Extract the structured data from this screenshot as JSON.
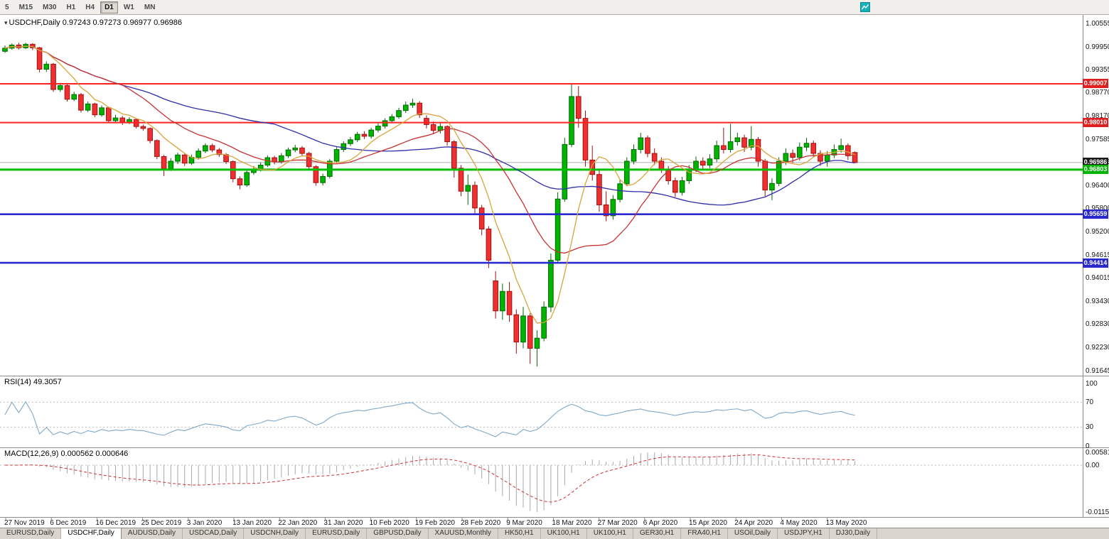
{
  "toolbar": {
    "timeframes": [
      {
        "label": "5",
        "active": false
      },
      {
        "label": "M15",
        "active": false
      },
      {
        "label": "M30",
        "active": false
      },
      {
        "label": "H1",
        "active": false
      },
      {
        "label": "H4",
        "active": false
      },
      {
        "label": "D1",
        "active": true
      },
      {
        "label": "W1",
        "active": false
      },
      {
        "label": "MN",
        "active": false
      }
    ]
  },
  "main_chart": {
    "header_symbol": "USDCHF,Daily",
    "header_ohlc": "0.97243 0.97273 0.96977 0.96986"
  },
  "rsi_panel": {
    "label": "RSI(14)",
    "value": "49.3057",
    "axis_labels": [
      "100",
      "70",
      "30",
      "0"
    ]
  },
  "macd_panel": {
    "label": "MACD(12,26,9)",
    "values": "0.000562 0.000646",
    "axis_labels": [
      "0.00581",
      "0.00",
      "-0.01151"
    ]
  },
  "price_tags": [
    {
      "value": "0.99007",
      "color": "#E02020",
      "type": "resistance-line"
    },
    {
      "value": "0.98010",
      "color": "#E02020",
      "type": "resistance-line"
    },
    {
      "value": "0.96986",
      "color": "#1A1A1A",
      "type": "current-price"
    },
    {
      "value": "0.96803",
      "color": "#00B400",
      "type": "support-line"
    },
    {
      "value": "0.95659",
      "color": "#2A2ACC",
      "type": "support-line"
    },
    {
      "value": "0.94414",
      "color": "#2A2ACC",
      "type": "support-line"
    }
  ],
  "tabs": {
    "items": [
      {
        "label": "EURUSD,Daily",
        "active": false
      },
      {
        "label": "USDCHF,Daily",
        "active": true
      },
      {
        "label": "AUDUSD,Daily",
        "active": false
      },
      {
        "label": "USDCAD,Daily",
        "active": false
      },
      {
        "label": "USDCNH,Daily",
        "active": false
      },
      {
        "label": "EURUSD,Daily",
        "active": false
      },
      {
        "label": "GBPUSD,Daily",
        "active": false
      },
      {
        "label": "XAUUSD,Monthly",
        "active": false
      },
      {
        "label": "HK50,H1",
        "active": false
      },
      {
        "label": "UK100,H1",
        "active": false
      },
      {
        "label": "UK100,H1",
        "active": false
      },
      {
        "label": "GER30,H1",
        "active": false
      },
      {
        "label": "FRA40,H1",
        "active": false
      },
      {
        "label": "USOil,Daily",
        "active": false
      },
      {
        "label": "USDJPY,H1",
        "active": false
      },
      {
        "label": "DJ30,Daily",
        "active": false
      }
    ]
  },
  "chart_data": {
    "type": "candlestick",
    "symbol": "USDCHF",
    "timeframe": "Daily",
    "last_ohlc": {
      "open": 0.97243,
      "high": 0.97273,
      "low": 0.96977,
      "close": 0.96986
    },
    "current_price": 0.96986,
    "price_range": {
      "max": 1.00555,
      "min": 0.91645
    },
    "y_ticks": [
      "1.00555",
      "0.99950",
      "0.99355",
      "0.98770",
      "0.98170",
      "0.97585",
      "0.96985",
      "0.96400",
      "0.95800",
      "0.95200",
      "0.94615",
      "0.94015",
      "0.93430",
      "0.92830",
      "0.92230",
      "0.91645"
    ],
    "x_labels": [
      "27 Nov 2019",
      "6 Dec 2019",
      "16 Dec 2019",
      "25 Dec 2019",
      "3 Jan 2020",
      "13 Jan 2020",
      "22 Jan 2020",
      "31 Jan 2020",
      "10 Feb 2020",
      "19 Feb 2020",
      "28 Feb 2020",
      "9 Mar 2020",
      "18 Mar 2020",
      "27 Mar 2020",
      "6 Apr 2020",
      "15 Apr 2020",
      "24 Apr 2020",
      "4 May 2020",
      "13 May 2020"
    ],
    "hlines": [
      {
        "price": 0.99007,
        "color": "#FF2020",
        "width": 2
      },
      {
        "price": 0.9801,
        "color": "#FF2020",
        "width": 2
      },
      {
        "price": 0.96803,
        "color": "#00BE00",
        "width": 3
      },
      {
        "price": 0.95659,
        "color": "#2A2AD0",
        "width": 2.6
      },
      {
        "price": 0.94414,
        "color": "#2A2AD0",
        "width": 2.6
      }
    ],
    "moving_averages": [
      {
        "name": "ma-slow",
        "period": 40,
        "color": "#2E2EA8"
      },
      {
        "name": "ma-medium",
        "period": 18,
        "color": "#C83232"
      },
      {
        "name": "ma-fast",
        "period": 7,
        "color": "#D9A43B"
      }
    ],
    "rsi": {
      "period": 14,
      "current": 49.3057,
      "levels": [
        70,
        30
      ]
    },
    "macd": {
      "fast": 12,
      "slow": 26,
      "signal": 9,
      "current_main": 0.000562,
      "current_signal": 0.000646
    },
    "colors": {
      "bull": "#00B400",
      "bull_border": "#006900",
      "bear": "#F03030",
      "bear_border": "#A01010",
      "rsi_line": "#7FA8C9",
      "macd_hist": "#A9A9A9",
      "macd_signal": "#D23030",
      "bid_line": "#ABABAB",
      "level_dotted": "#BBBBBB",
      "frame": "#8C8C8C"
    },
    "candles": [
      [
        0.9984,
        0.9999,
        0.998,
        0.9992
      ],
      [
        0.9992,
        1.0004,
        0.9988,
        1.0
      ],
      [
        1.0,
        1.0006,
        0.9989,
        0.9993
      ],
      [
        0.9993,
        1.0006,
        0.999,
        1.0002
      ],
      [
        1.0002,
        1.0005,
        0.9987,
        0.9993
      ],
      [
        0.9993,
        0.9995,
        0.993,
        0.9938
      ],
      [
        0.9938,
        0.9958,
        0.9931,
        0.9951
      ],
      [
        0.9951,
        0.9954,
        0.988,
        0.9886
      ],
      [
        0.9886,
        0.9903,
        0.988,
        0.9896
      ],
      [
        0.9896,
        0.99,
        0.9855,
        0.9861
      ],
      [
        0.9861,
        0.988,
        0.9856,
        0.9873
      ],
      [
        0.9873,
        0.9877,
        0.9827,
        0.9833
      ],
      [
        0.9833,
        0.9855,
        0.9828,
        0.9849
      ],
      [
        0.9849,
        0.9852,
        0.9815,
        0.9821
      ],
      [
        0.9821,
        0.9845,
        0.9816,
        0.9839
      ],
      [
        0.9839,
        0.9842,
        0.98,
        0.9806
      ],
      [
        0.9806,
        0.9821,
        0.98,
        0.9813
      ],
      [
        0.9813,
        0.9818,
        0.9795,
        0.9801
      ],
      [
        0.9801,
        0.9815,
        0.9797,
        0.9809
      ],
      [
        0.9809,
        0.9812,
        0.9786,
        0.9791
      ],
      [
        0.9791,
        0.9796,
        0.978,
        0.9786
      ],
      [
        0.9786,
        0.9789,
        0.9748,
        0.9755
      ],
      [
        0.9755,
        0.9758,
        0.9707,
        0.9714
      ],
      [
        0.9714,
        0.9718,
        0.9664,
        0.9683
      ],
      [
        0.9683,
        0.971,
        0.9677,
        0.9702
      ],
      [
        0.9702,
        0.9724,
        0.9695,
        0.9718
      ],
      [
        0.9718,
        0.9721,
        0.969,
        0.9697
      ],
      [
        0.9697,
        0.9719,
        0.9692,
        0.9712
      ],
      [
        0.9712,
        0.9735,
        0.9706,
        0.9728
      ],
      [
        0.9728,
        0.9748,
        0.9723,
        0.9742
      ],
      [
        0.9742,
        0.9747,
        0.9725,
        0.9731
      ],
      [
        0.9731,
        0.9736,
        0.9713,
        0.9719
      ],
      [
        0.9719,
        0.9723,
        0.9695,
        0.9701
      ],
      [
        0.9701,
        0.9704,
        0.9648,
        0.9657
      ],
      [
        0.9657,
        0.9663,
        0.963,
        0.9641
      ],
      [
        0.9641,
        0.9679,
        0.9636,
        0.9673
      ],
      [
        0.9673,
        0.969,
        0.9667,
        0.9682
      ],
      [
        0.9682,
        0.9699,
        0.9676,
        0.9692
      ],
      [
        0.9692,
        0.9717,
        0.9687,
        0.9711
      ],
      [
        0.9711,
        0.9716,
        0.9694,
        0.9701
      ],
      [
        0.9701,
        0.9723,
        0.9696,
        0.9716
      ],
      [
        0.9716,
        0.9737,
        0.971,
        0.9731
      ],
      [
        0.9731,
        0.9744,
        0.9725,
        0.9736
      ],
      [
        0.9736,
        0.9741,
        0.9715,
        0.9722
      ],
      [
        0.9722,
        0.9726,
        0.9681,
        0.9688
      ],
      [
        0.9688,
        0.9692,
        0.9639,
        0.9647
      ],
      [
        0.9647,
        0.967,
        0.964,
        0.9663
      ],
      [
        0.9663,
        0.9708,
        0.9658,
        0.9702
      ],
      [
        0.9702,
        0.9738,
        0.9697,
        0.9732
      ],
      [
        0.9732,
        0.9753,
        0.9726,
        0.9747
      ],
      [
        0.9747,
        0.9764,
        0.9741,
        0.9757
      ],
      [
        0.9757,
        0.9777,
        0.9751,
        0.9771
      ],
      [
        0.9771,
        0.9779,
        0.9759,
        0.9766
      ],
      [
        0.9766,
        0.9788,
        0.976,
        0.9782
      ],
      [
        0.9782,
        0.9799,
        0.9776,
        0.9792
      ],
      [
        0.9792,
        0.9812,
        0.9786,
        0.9806
      ],
      [
        0.9806,
        0.9823,
        0.98,
        0.9816
      ],
      [
        0.9816,
        0.9839,
        0.9811,
        0.9832
      ],
      [
        0.9832,
        0.9855,
        0.9826,
        0.9846
      ],
      [
        0.9846,
        0.9862,
        0.9839,
        0.9851
      ],
      [
        0.9851,
        0.9856,
        0.9813,
        0.9821
      ],
      [
        0.9812,
        0.982,
        0.9786,
        0.9796
      ],
      [
        0.9796,
        0.9804,
        0.9772,
        0.9781
      ],
      [
        0.9781,
        0.98,
        0.9773,
        0.9791
      ],
      [
        0.9791,
        0.9794,
        0.9742,
        0.9752
      ],
      [
        0.9752,
        0.9756,
        0.966,
        0.9684
      ],
      [
        0.9684,
        0.9692,
        0.9612,
        0.9625
      ],
      [
        0.9625,
        0.9668,
        0.959,
        0.964
      ],
      [
        0.964,
        0.965,
        0.9565,
        0.9582
      ],
      [
        0.9582,
        0.959,
        0.9512,
        0.9528
      ],
      [
        0.9528,
        0.9535,
        0.9428,
        0.9448
      ],
      [
        0.9395,
        0.942,
        0.9298,
        0.9318
      ],
      [
        0.9318,
        0.9388,
        0.9295,
        0.9368
      ],
      [
        0.9368,
        0.9392,
        0.929,
        0.9308
      ],
      [
        0.9308,
        0.9322,
        0.9208,
        0.9238
      ],
      [
        0.9238,
        0.9328,
        0.9222,
        0.9305
      ],
      [
        0.9305,
        0.9312,
        0.9182,
        0.9222
      ],
      [
        0.9222,
        0.9268,
        0.9175,
        0.9248
      ],
      [
        0.9248,
        0.9342,
        0.924,
        0.9328
      ],
      [
        0.9328,
        0.9465,
        0.9315,
        0.9448
      ],
      [
        0.9448,
        0.9622,
        0.944,
        0.9605
      ],
      [
        0.9605,
        0.9762,
        0.9598,
        0.9745
      ],
      [
        0.9745,
        0.9901,
        0.9738,
        0.9868
      ],
      [
        0.9868,
        0.9895,
        0.9788,
        0.9812
      ],
      [
        0.9812,
        0.9832,
        0.9688,
        0.9705
      ],
      [
        0.9705,
        0.9742,
        0.9652,
        0.9668
      ],
      [
        0.9668,
        0.9682,
        0.9572,
        0.959
      ],
      [
        0.959,
        0.9625,
        0.9548,
        0.9562
      ],
      [
        0.9562,
        0.9615,
        0.9552,
        0.9604
      ],
      [
        0.9604,
        0.9655,
        0.9596,
        0.9644
      ],
      [
        0.9644,
        0.9712,
        0.9638,
        0.9702
      ],
      [
        0.9702,
        0.9745,
        0.9694,
        0.9732
      ],
      [
        0.9732,
        0.9775,
        0.9722,
        0.9762
      ],
      [
        0.9762,
        0.9768,
        0.9712,
        0.9722
      ],
      [
        0.9722,
        0.9735,
        0.9692,
        0.9702
      ],
      [
        0.9702,
        0.9712,
        0.9672,
        0.9682
      ],
      [
        0.9682,
        0.969,
        0.9642,
        0.9652
      ],
      [
        0.9652,
        0.966,
        0.961,
        0.9622
      ],
      [
        0.9622,
        0.9662,
        0.9614,
        0.9652
      ],
      [
        0.9652,
        0.9692,
        0.9644,
        0.9682
      ],
      [
        0.9682,
        0.9714,
        0.9674,
        0.9702
      ],
      [
        0.9702,
        0.9712,
        0.9682,
        0.9692
      ],
      [
        0.9692,
        0.972,
        0.9684,
        0.9708
      ],
      [
        0.9708,
        0.9755,
        0.97,
        0.9742
      ],
      [
        0.9742,
        0.9788,
        0.9722,
        0.9732
      ],
      [
        0.9732,
        0.9798,
        0.9724,
        0.9752
      ],
      [
        0.9752,
        0.9775,
        0.9742,
        0.9762
      ],
      [
        0.9762,
        0.977,
        0.9726,
        0.9738
      ],
      [
        0.9738,
        0.9792,
        0.973,
        0.9758
      ],
      [
        0.9758,
        0.9764,
        0.9688,
        0.9702
      ],
      [
        0.9702,
        0.9708,
        0.9612,
        0.9628
      ],
      [
        0.9628,
        0.9658,
        0.9602,
        0.9645
      ],
      [
        0.9645,
        0.9712,
        0.9638,
        0.9702
      ],
      [
        0.9702,
        0.9735,
        0.9692,
        0.9722
      ],
      [
        0.9722,
        0.9732,
        0.9698,
        0.9712
      ],
      [
        0.9712,
        0.975,
        0.9704,
        0.9738
      ],
      [
        0.9738,
        0.9762,
        0.9728,
        0.9748
      ],
      [
        0.9748,
        0.9755,
        0.9712,
        0.9722
      ],
      [
        0.9722,
        0.973,
        0.969,
        0.9702
      ],
      [
        0.9702,
        0.9728,
        0.9688,
        0.9718
      ],
      [
        0.9718,
        0.9745,
        0.971,
        0.9732
      ],
      [
        0.9732,
        0.976,
        0.9724,
        0.9742
      ],
      [
        0.9742,
        0.9748,
        0.9705,
        0.9716
      ],
      [
        0.97243,
        0.97273,
        0.96977,
        0.96986
      ]
    ]
  }
}
